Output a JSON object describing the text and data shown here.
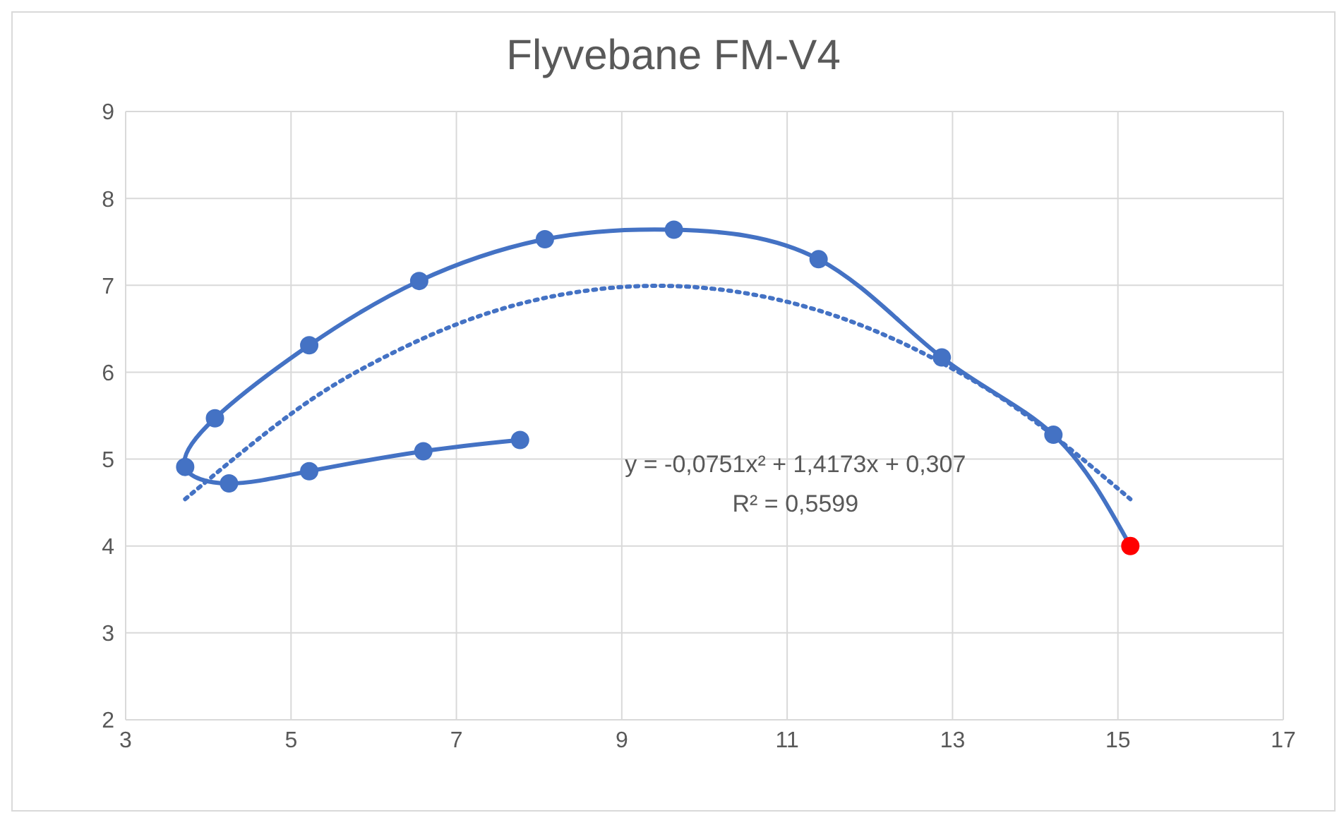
{
  "chart_data": {
    "type": "line",
    "title": "Flyvebane  FM-V4",
    "xlim": [
      3,
      17
    ],
    "xticks": [
      3,
      5,
      7,
      9,
      11,
      13,
      15,
      17
    ],
    "ylim": [
      2,
      9
    ],
    "yticks": [
      2,
      3,
      4,
      5,
      6,
      7,
      8,
      9
    ],
    "grid": true,
    "marker": "circle",
    "series": [
      {
        "color": "#4472c4",
        "x": [
          7.77,
          6.6,
          5.22,
          4.25,
          3.72,
          4.08,
          5.22,
          6.55,
          8.07,
          9.63,
          11.38,
          12.87,
          14.22,
          15.15
        ],
        "values": [
          5.22,
          5.09,
          4.86,
          4.72,
          4.91,
          5.47,
          6.31,
          7.05,
          7.53,
          7.64,
          7.3,
          6.17,
          5.28,
          4.0
        ],
        "colors": [
          "#4472c4",
          "#4472c4",
          "#4472c4",
          "#4472c4",
          "#4472c4",
          "#4472c4",
          "#4472c4",
          "#4472c4",
          "#4472c4",
          "#4472c4",
          "#4472c4",
          "#4472c4",
          "#4472c4",
          "#ff0000"
        ]
      },
      {
        "color": "#4472c4",
        "line_style": "dotted",
        "marker": "none",
        "x": [
          3.72,
          5,
          6,
          7,
          8,
          9,
          10,
          11,
          12,
          13,
          14,
          15.15
        ],
        "values": [
          4.54,
          5.52,
          6.11,
          6.55,
          6.84,
          6.98,
          6.97,
          6.81,
          6.5,
          6.04,
          5.43,
          4.54
        ]
      }
    ],
    "annotations": [
      "y = -0,0751x² + 1,4173x + 0,307",
      "R² = 0,5599"
    ]
  }
}
